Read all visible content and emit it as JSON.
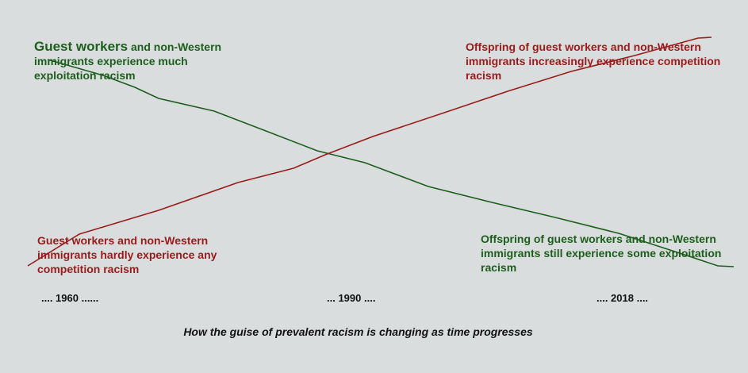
{
  "labels": {
    "top_left_bold": "Guest workers",
    "top_left_rest": " and non-Western immigrants experience much exploitation racism",
    "top_right": "Offspring of guest workers and non-Western immigrants increasingly experience competition racism",
    "bottom_left": "Guest workers and non-Western immigrants hardly experience any competition racism",
    "bottom_right": "Offspring of guest workers and non-Western immigrants still experience some exploitation racism"
  },
  "timeline": [
    ".... 1960 ......",
    "... 1990 ....",
    ".... 2018 ...."
  ],
  "caption": "How the guise of prevalent racism is changing as time progresses",
  "series": [
    {
      "trend": "decreasing",
      "meaning": "exploitation racism",
      "color": "#1d5e1d"
    },
    {
      "trend": "increasing",
      "meaning": "competition racism",
      "color": "#9a1b1b"
    }
  ]
}
